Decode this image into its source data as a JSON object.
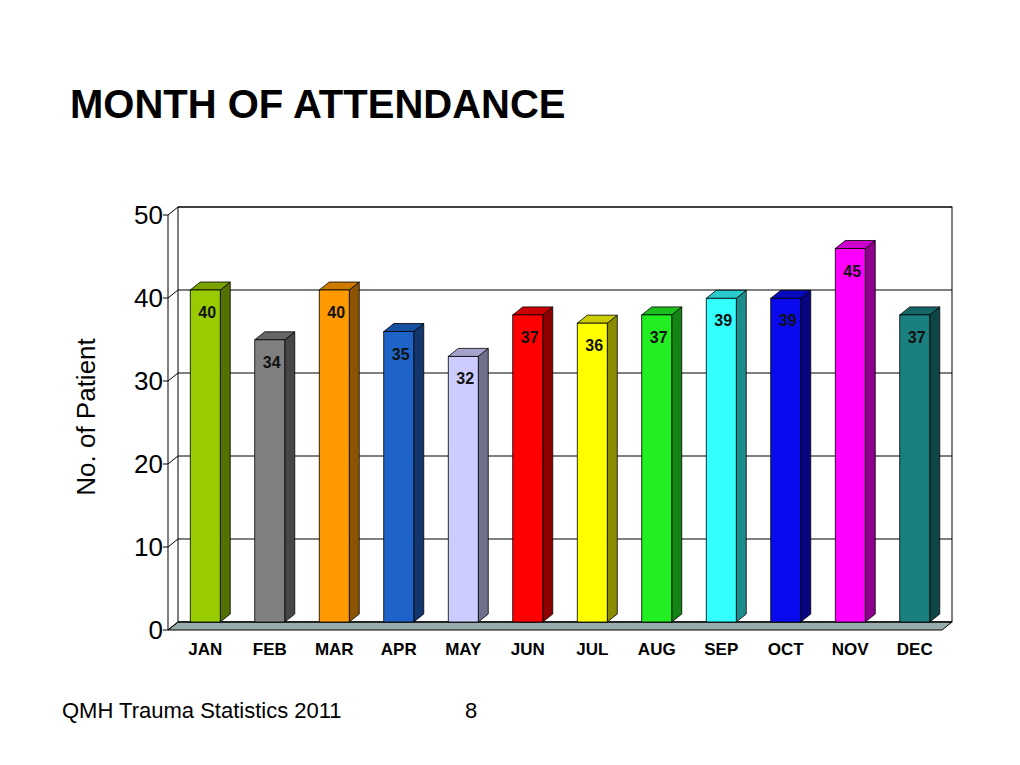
{
  "chart_data": {
    "type": "bar",
    "title": "MONTH OF ATTENDANCE",
    "y_label": "No. of Patient",
    "categories": [
      "JAN",
      "FEB",
      "MAR",
      "APR",
      "MAY",
      "JUN",
      "JUL",
      "AUG",
      "SEP",
      "OCT",
      "NOV",
      "DEC"
    ],
    "values": [
      40,
      34,
      40,
      35,
      32,
      37,
      36,
      37,
      39,
      39,
      45,
      37
    ],
    "colors": [
      "#99cc00",
      "#808080",
      "#ff9900",
      "#1e64c8",
      "#ccccff",
      "#ff0000",
      "#ffff00",
      "#22ee22",
      "#33ffff",
      "#0a0aee",
      "#ff00ff",
      "#1a7f7f"
    ],
    "ylim": [
      0,
      50
    ],
    "yticks": [
      0,
      10,
      20,
      30,
      40,
      50
    ],
    "grid": true,
    "data_labels": true
  },
  "footer": {
    "text": "QMH Trauma Statistics 2011",
    "page": 8
  }
}
